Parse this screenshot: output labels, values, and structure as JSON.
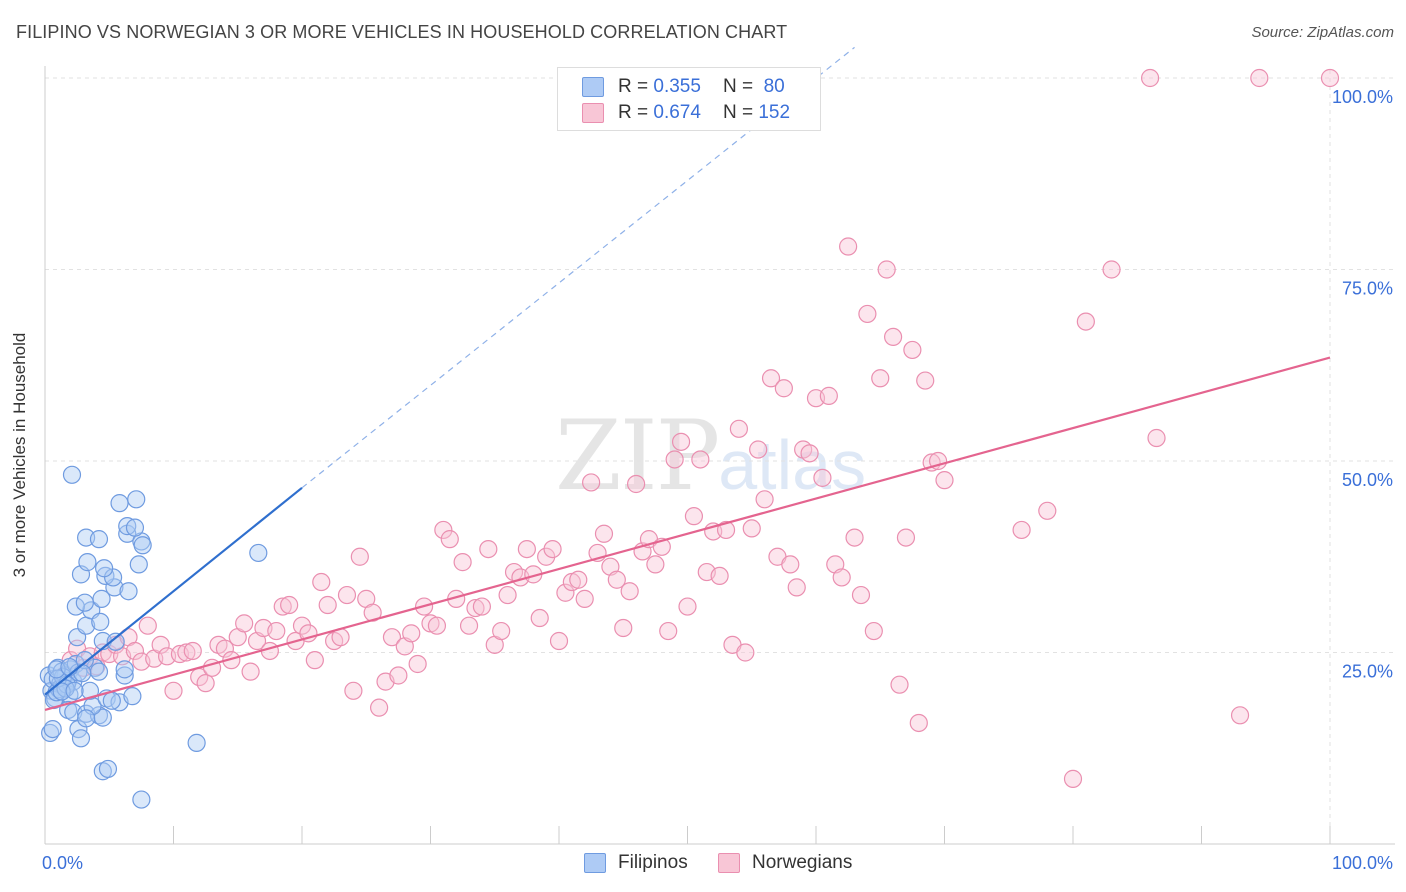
{
  "title": "FILIPINO VS NORWEGIAN 3 OR MORE VEHICLES IN HOUSEHOLD CORRELATION CHART",
  "source": "Source: ZipAtlas.com",
  "watermark": {
    "zip": "ZIP",
    "atlas": "atlas"
  },
  "legend": {
    "rows": [
      {
        "r_label": "R =",
        "r_value": "0.355",
        "n_label": "N =",
        "n_value": "80",
        "fill": "#aecbf5",
        "stroke": "#6f9be0"
      },
      {
        "r_label": "R =",
        "r_value": "0.674",
        "n_label": "N =",
        "n_value": "152",
        "fill": "#f8c6d6",
        "stroke": "#ea8fb0"
      }
    ]
  },
  "bottom_legend": [
    {
      "label": "Filipinos",
      "fill": "#aecbf5",
      "stroke": "#6f9be0"
    },
    {
      "label": "Norwegians",
      "fill": "#f8c6d6",
      "stroke": "#ea8fb0"
    }
  ],
  "chart_data": {
    "type": "scatter",
    "title": "FILIPINO VS NORWEGIAN 3 OR MORE VEHICLES IN HOUSEHOLD CORRELATION CHART",
    "xlabel": "",
    "ylabel": "3 or more Vehicles in Household",
    "xlim": [
      0,
      100
    ],
    "ylim": [
      0,
      100
    ],
    "x_tick_labels": [
      "0.0%",
      "100.0%"
    ],
    "y_ticks": [
      25,
      50,
      75,
      100
    ],
    "y_tick_labels": [
      "25.0%",
      "50.0%",
      "75.0%",
      "100.0%"
    ],
    "grid": true,
    "colors": {
      "filipinos": "#6f9be0",
      "filipinos_line": "#2f6fce",
      "norwegians": "#ea8fb0",
      "norwegians_line": "#e4648f",
      "tick_text": "#3a6fd8"
    },
    "series": [
      {
        "name": "Filipinos",
        "trend": {
          "x0": 0,
          "y0": 19.5,
          "x1": 20,
          "y1": 46.5,
          "dashed_to_x": 63,
          "dashed_to_y": 104
        },
        "points": [
          [
            0.3,
            22
          ],
          [
            0.5,
            20
          ],
          [
            0.6,
            21.5
          ],
          [
            0.8,
            19
          ],
          [
            1,
            23
          ],
          [
            1.2,
            21
          ],
          [
            1.3,
            22.5
          ],
          [
            1.5,
            20.5
          ],
          [
            1.6,
            22
          ],
          [
            1.8,
            21.3
          ],
          [
            1.9,
            19.5
          ],
          [
            2,
            22.8
          ],
          [
            2.2,
            21.2
          ],
          [
            0.7,
            18.8
          ],
          [
            1.1,
            20.2
          ],
          [
            1.4,
            21.8
          ],
          [
            0.9,
            19.8
          ],
          [
            1.7,
            20.8
          ],
          [
            2.4,
            23.5
          ],
          [
            2.6,
            22.4
          ],
          [
            0.4,
            14.5
          ],
          [
            0.6,
            15
          ],
          [
            1.8,
            17.5
          ],
          [
            2.2,
            17.2
          ],
          [
            2.6,
            15
          ],
          [
            2.8,
            13.8
          ],
          [
            3.2,
            17
          ],
          [
            4.2,
            16.8
          ],
          [
            4.5,
            16.5
          ],
          [
            3.7,
            18
          ],
          [
            4.8,
            19
          ],
          [
            5.8,
            18.5
          ],
          [
            6.2,
            22
          ],
          [
            3.5,
            20
          ],
          [
            3.9,
            23
          ],
          [
            3.1,
            24
          ],
          [
            4.2,
            22.5
          ],
          [
            2.5,
            27
          ],
          [
            3.2,
            28.5
          ],
          [
            3.6,
            30.5
          ],
          [
            4.3,
            29
          ],
          [
            2.4,
            31
          ],
          [
            3.1,
            31.5
          ],
          [
            4.4,
            32
          ],
          [
            5.4,
            33.5
          ],
          [
            4.7,
            35
          ],
          [
            5.3,
            34.8
          ],
          [
            2.8,
            35.2
          ],
          [
            3.3,
            36.8
          ],
          [
            4.6,
            36
          ],
          [
            6.5,
            33
          ],
          [
            7.3,
            36.5
          ],
          [
            4.5,
            26.5
          ],
          [
            3.2,
            40
          ],
          [
            4.2,
            39.8
          ],
          [
            6.4,
            40.5
          ],
          [
            7.5,
            39.5
          ],
          [
            7.6,
            39
          ],
          [
            6.4,
            41.5
          ],
          [
            7,
            41.3
          ],
          [
            5.8,
            44.5
          ],
          [
            7.1,
            45
          ],
          [
            2.1,
            48.2
          ],
          [
            4.5,
            9.5
          ],
          [
            4.9,
            9.8
          ],
          [
            7.5,
            5.8
          ],
          [
            11.8,
            13.2
          ],
          [
            16.6,
            38
          ],
          [
            6.2,
            22.8
          ],
          [
            5.2,
            18.7
          ],
          [
            3.2,
            16.4
          ],
          [
            1.0,
            21.6
          ],
          [
            1.6,
            20.3
          ],
          [
            2.9,
            22.3
          ],
          [
            5.5,
            26.4
          ],
          [
            1.3,
            19.9
          ],
          [
            0.9,
            22.8
          ],
          [
            1.9,
            23.1
          ],
          [
            6.8,
            19.3
          ],
          [
            2.3,
            20.0
          ]
        ]
      },
      {
        "name": "Norwegians",
        "trend": {
          "x0": 0,
          "y0": 17.5,
          "x1": 100,
          "y1": 63.5
        },
        "points": [
          [
            1.5,
            22
          ],
          [
            2,
            24
          ],
          [
            2.5,
            25.5
          ],
          [
            3,
            23
          ],
          [
            3.5,
            24.5
          ],
          [
            4,
            23.2
          ],
          [
            4.5,
            25
          ],
          [
            5,
            24.8
          ],
          [
            5.5,
            26
          ],
          [
            6,
            24.5
          ],
          [
            6.5,
            27
          ],
          [
            7,
            25.2
          ],
          [
            7.5,
            23.8
          ],
          [
            8,
            28.5
          ],
          [
            8.5,
            24.2
          ],
          [
            9,
            26
          ],
          [
            9.5,
            24.5
          ],
          [
            10,
            20
          ],
          [
            10.5,
            24.8
          ],
          [
            11,
            25
          ],
          [
            11.5,
            25.2
          ],
          [
            12,
            21.8
          ],
          [
            12.5,
            21
          ],
          [
            13,
            23
          ],
          [
            13.5,
            26
          ],
          [
            14,
            25.5
          ],
          [
            14.5,
            24
          ],
          [
            15,
            27
          ],
          [
            15.5,
            28.8
          ],
          [
            16,
            22.5
          ],
          [
            16.5,
            26.5
          ],
          [
            17,
            28.2
          ],
          [
            17.5,
            25.2
          ],
          [
            18,
            27.8
          ],
          [
            18.5,
            31
          ],
          [
            19,
            31.2
          ],
          [
            19.5,
            26.5
          ],
          [
            20,
            28.5
          ],
          [
            20.5,
            27.5
          ],
          [
            21,
            24
          ],
          [
            21.5,
            34.2
          ],
          [
            22,
            31.2
          ],
          [
            22.5,
            26.5
          ],
          [
            23,
            27
          ],
          [
            23.5,
            32.5
          ],
          [
            24,
            20
          ],
          [
            24.5,
            37.5
          ],
          [
            25,
            32
          ],
          [
            25.5,
            30.2
          ],
          [
            26,
            17.8
          ],
          [
            26.5,
            21.2
          ],
          [
            27,
            27
          ],
          [
            27.5,
            22
          ],
          [
            28,
            25.8
          ],
          [
            28.5,
            27.5
          ],
          [
            29,
            23.5
          ],
          [
            29.5,
            31
          ],
          [
            30,
            28.8
          ],
          [
            30.5,
            28.5
          ],
          [
            31,
            41
          ],
          [
            31.5,
            39.8
          ],
          [
            32,
            32
          ],
          [
            32.5,
            36.8
          ],
          [
            33,
            28.5
          ],
          [
            33.5,
            30.8
          ],
          [
            34,
            31
          ],
          [
            34.5,
            38.5
          ],
          [
            35,
            26
          ],
          [
            35.5,
            27.8
          ],
          [
            36,
            32.5
          ],
          [
            36.5,
            35.5
          ],
          [
            37,
            34.8
          ],
          [
            37.5,
            38.5
          ],
          [
            38,
            35.2
          ],
          [
            38.5,
            29.5
          ],
          [
            39,
            37.5
          ],
          [
            39.5,
            38.5
          ],
          [
            40,
            26.5
          ],
          [
            40.5,
            32.8
          ],
          [
            41,
            34.2
          ],
          [
            41.5,
            34.5
          ],
          [
            42,
            32
          ],
          [
            42.5,
            47.2
          ],
          [
            43,
            38
          ],
          [
            43.5,
            40.5
          ],
          [
            44,
            36.2
          ],
          [
            44.5,
            34.5
          ],
          [
            45,
            28.2
          ],
          [
            45.5,
            33
          ],
          [
            46,
            47
          ],
          [
            46.5,
            38.2
          ],
          [
            47,
            39.8
          ],
          [
            47.5,
            36.5
          ],
          [
            48,
            38.8
          ],
          [
            48.5,
            27.8
          ],
          [
            49,
            50.2
          ],
          [
            49.5,
            52.5
          ],
          [
            50,
            31
          ],
          [
            50.5,
            42.8
          ],
          [
            51,
            50.2
          ],
          [
            51.5,
            35.5
          ],
          [
            52,
            40.8
          ],
          [
            52.5,
            35
          ],
          [
            53,
            41
          ],
          [
            53.5,
            26
          ],
          [
            54,
            54.2
          ],
          [
            54.5,
            25
          ],
          [
            55,
            41.2
          ],
          [
            55.5,
            51.5
          ],
          [
            56,
            45
          ],
          [
            56.5,
            60.8
          ],
          [
            57,
            37.5
          ],
          [
            57.5,
            59.5
          ],
          [
            58,
            36.5
          ],
          [
            58.5,
            33.5
          ],
          [
            59,
            51.5
          ],
          [
            59.5,
            51
          ],
          [
            60,
            58.2
          ],
          [
            60.5,
            47.8
          ],
          [
            61,
            58.5
          ],
          [
            61.5,
            36.5
          ],
          [
            62,
            34.8
          ],
          [
            62.5,
            78
          ],
          [
            63,
            40
          ],
          [
            63.5,
            32.5
          ],
          [
            64,
            69.2
          ],
          [
            64.5,
            27.8
          ],
          [
            65,
            60.8
          ],
          [
            65.5,
            75
          ],
          [
            66,
            66.2
          ],
          [
            66.5,
            20.8
          ],
          [
            67,
            40
          ],
          [
            67.5,
            64.5
          ],
          [
            68,
            15.8
          ],
          [
            68.5,
            60.5
          ],
          [
            69,
            49.8
          ],
          [
            69.5,
            50
          ],
          [
            70,
            47.5
          ],
          [
            76,
            41
          ],
          [
            78,
            43.5
          ],
          [
            80,
            8.5
          ],
          [
            81,
            68.2
          ],
          [
            83,
            75
          ],
          [
            86,
            100
          ],
          [
            86.5,
            53
          ],
          [
            93,
            16.8
          ],
          [
            94.5,
            100
          ],
          [
            100,
            100
          ]
        ]
      }
    ]
  }
}
